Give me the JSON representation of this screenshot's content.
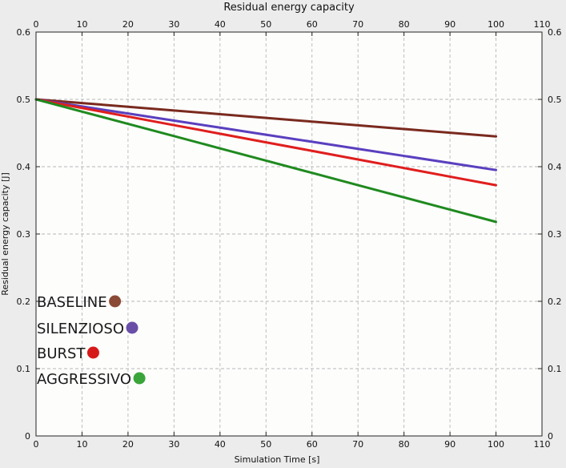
{
  "chart_data": {
    "type": "line",
    "title": "Residual energy capacity",
    "xlabel": "Simulation Time [s]",
    "ylabel": "Residual energy capacity [J]",
    "xlim": [
      0,
      110
    ],
    "ylim": [
      0,
      0.6
    ],
    "x_ticks": [
      "0",
      "10",
      "20",
      "30",
      "40",
      "50",
      "60",
      "70",
      "80",
      "90",
      "100",
      "110"
    ],
    "y_ticks": [
      "0",
      "0.1",
      "0.2",
      "0.3",
      "0.4",
      "0.5",
      "0.6"
    ],
    "grid": true,
    "legend_position": "left-lower",
    "background": "#fdfdfc",
    "series": [
      {
        "name": "BASELINE",
        "color": "#7a2a1e",
        "marker_color": "#8b4a36",
        "x": [
          0,
          10,
          20,
          30,
          40,
          50,
          60,
          70,
          80,
          90,
          100
        ],
        "values": [
          0.5,
          0.4945,
          0.489,
          0.4835,
          0.478,
          0.4725,
          0.467,
          0.4615,
          0.456,
          0.4505,
          0.445
        ]
      },
      {
        "name": "SILENZIOSO",
        "color": "#5a3fbf",
        "marker_color": "#6a4fa8",
        "x": [
          0,
          10,
          20,
          30,
          40,
          50,
          60,
          70,
          80,
          90,
          100
        ],
        "values": [
          0.5,
          0.4895,
          0.479,
          0.4685,
          0.458,
          0.4475,
          0.437,
          0.4265,
          0.416,
          0.4055,
          0.395
        ]
      },
      {
        "name": "BURST",
        "color": "#e01e1e",
        "marker_color": "#d61a1a",
        "x": [
          0,
          10,
          20,
          30,
          40,
          50,
          60,
          70,
          80,
          90,
          100
        ],
        "values": [
          0.5,
          0.4872,
          0.4745,
          0.4617,
          0.449,
          0.4362,
          0.4235,
          0.4107,
          0.398,
          0.3852,
          0.3725
        ]
      },
      {
        "name": "AGGRESSIVO",
        "color": "#1f8a1f",
        "marker_color": "#3aa53a",
        "x": [
          0,
          10,
          20,
          30,
          40,
          50,
          60,
          70,
          80,
          90,
          100
        ],
        "values": [
          0.5,
          0.4818,
          0.4636,
          0.4454,
          0.4272,
          0.409,
          0.3908,
          0.3726,
          0.3544,
          0.3362,
          0.318
        ]
      }
    ]
  }
}
